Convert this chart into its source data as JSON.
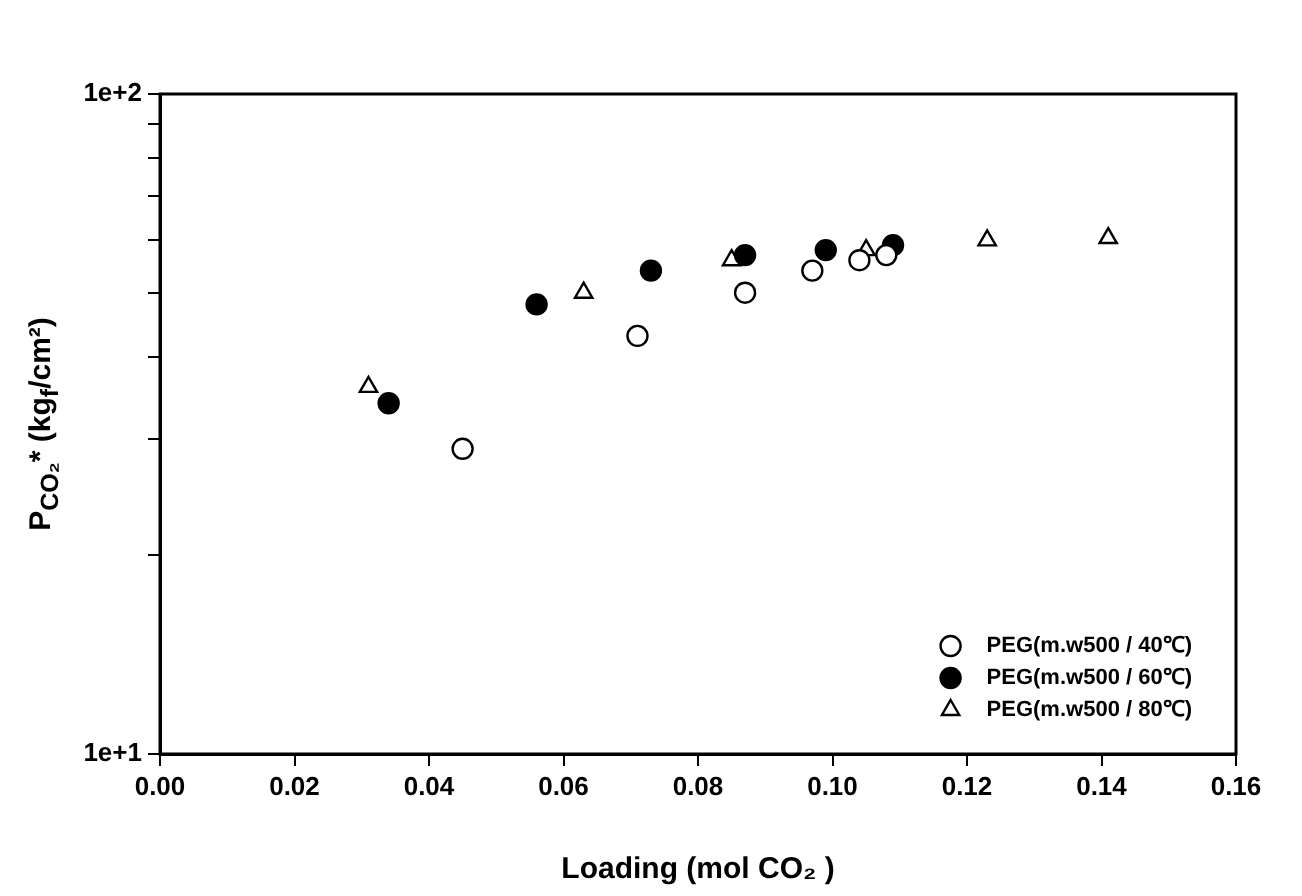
{
  "chart_data": {
    "type": "scatter",
    "xlabel": "Loading (mol CO₂ )",
    "ylabel": "P$_{CO₂}$* (kg$_{f}$/cm²)",
    "xlim": [
      0,
      0.16
    ],
    "xticks": [
      {
        "value": 0,
        "label": "0.00"
      },
      {
        "value": 0.02,
        "label": "0.02"
      },
      {
        "value": 0.04,
        "label": "0.04"
      },
      {
        "value": 0.06,
        "label": "0.06"
      },
      {
        "value": 0.08,
        "label": "0.08"
      },
      {
        "value": 0.1,
        "label": "0.10"
      },
      {
        "value": 0.12,
        "label": "0.12"
      },
      {
        "value": 0.14,
        "label": "0.14"
      },
      {
        "value": 0.16,
        "label": "0.16"
      }
    ],
    "ylim": [
      10,
      100
    ],
    "yticks": [
      {
        "value": 10,
        "label": "1e+1"
      },
      {
        "value": 20,
        "label": null
      },
      {
        "value": 30,
        "label": null
      },
      {
        "value": 40,
        "label": null
      },
      {
        "value": 50,
        "label": null
      },
      {
        "value": 60,
        "label": null
      },
      {
        "value": 70,
        "label": null
      },
      {
        "value": 80,
        "label": null
      },
      {
        "value": 90,
        "label": null
      },
      {
        "value": 100,
        "label": "1e+2"
      }
    ],
    "log": "y",
    "grid": false,
    "legend": "bottom right",
    "series": [
      {
        "name": "PEG(m.w500 / 40℃)",
        "color": "#ffffff",
        "marker": "circle",
        "x": [
          0.045,
          0.071,
          0.087,
          0.097,
          0.104,
          0.108
        ],
        "values": [
          29,
          43,
          50,
          54,
          56,
          57
        ]
      },
      {
        "name": "PEG(m.w500 / 60℃)",
        "color": "#000000",
        "marker": "circle",
        "x": [
          0.034,
          0.056,
          0.073,
          0.087,
          0.099,
          0.109
        ],
        "values": [
          34,
          48,
          54,
          57,
          58,
          59
        ]
      },
      {
        "name": "PEG(m.w500 / 80℃)",
        "color": "#ffffff",
        "marker": "triangle",
        "x": [
          0.031,
          0.063,
          0.085,
          0.105,
          0.123,
          0.141
        ],
        "values": [
          36,
          50,
          56,
          58,
          60,
          60.5
        ]
      }
    ]
  }
}
